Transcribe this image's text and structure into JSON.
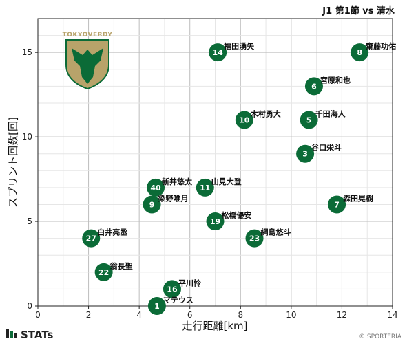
{
  "chart_data": {
    "type": "scatter",
    "title": "J1 第1節 vs 清水",
    "xlabel": "走行距離[km]",
    "ylabel": "スプリント回数[回]",
    "xlim": [
      0,
      14
    ],
    "ylim": [
      0,
      17
    ],
    "xticks": [
      0,
      2,
      4,
      6,
      8,
      10,
      12,
      14
    ],
    "yticks": [
      0,
      5,
      10,
      15
    ],
    "grid": true,
    "points": [
      {
        "number": "14",
        "name": "福田湧矢",
        "x": 7.1,
        "y": 15
      },
      {
        "number": "8",
        "name": "齋藤功佑",
        "x": 12.7,
        "y": 15
      },
      {
        "number": "6",
        "name": "宮原和也",
        "x": 10.9,
        "y": 13
      },
      {
        "number": "10",
        "name": "木村勇大",
        "x": 8.15,
        "y": 11
      },
      {
        "number": "5",
        "name": "千田海人",
        "x": 10.7,
        "y": 11
      },
      {
        "number": "3",
        "name": "谷口栄斗",
        "x": 10.55,
        "y": 9
      },
      {
        "number": "40",
        "name": "新井悠太",
        "x": 4.65,
        "y": 7
      },
      {
        "number": "11",
        "name": "山見大登",
        "x": 6.6,
        "y": 7
      },
      {
        "number": "9",
        "name": "染野唯月",
        "x": 4.5,
        "y": 6
      },
      {
        "number": "7",
        "name": "森田晃樹",
        "x": 11.8,
        "y": 6
      },
      {
        "number": "19",
        "name": "松橋優安",
        "x": 7.0,
        "y": 5
      },
      {
        "number": "23",
        "name": "綱島悠斗",
        "x": 8.55,
        "y": 4
      },
      {
        "number": "27",
        "name": "白井亮丞",
        "x": 2.1,
        "y": 4
      },
      {
        "number": "22",
        "name": "翁長聖",
        "x": 2.6,
        "y": 2
      },
      {
        "number": "16",
        "name": "平川怜",
        "x": 5.3,
        "y": 1
      },
      {
        "number": "1",
        "name": "マテウス",
        "x": 4.7,
        "y": 0
      }
    ],
    "marker_color": "#0b6b37"
  },
  "logo": {
    "text": "TOKYOVERDY",
    "gold": "#b8a36a",
    "green": "#0b6b37"
  },
  "footer": {
    "brand": "STATs",
    "copyright": "© SPORTERIA"
  }
}
